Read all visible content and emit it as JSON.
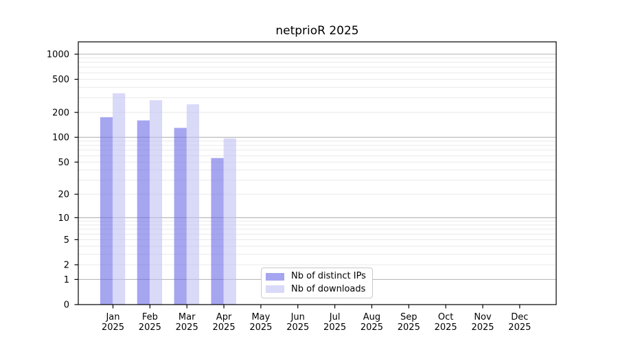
{
  "chart_data": {
    "type": "bar",
    "title": "netprioR 2025",
    "year": "2025",
    "categories": [
      "Jan",
      "Feb",
      "Mar",
      "Apr",
      "May",
      "Jun",
      "Jul",
      "Aug",
      "Sep",
      "Oct",
      "Nov",
      "Dec"
    ],
    "series": [
      {
        "name": "Nb of distinct IPs",
        "color": "#a5a5f0",
        "values": [
          175,
          160,
          130,
          56,
          null,
          null,
          null,
          null,
          null,
          null,
          null,
          null
        ]
      },
      {
        "name": "Nb of downloads",
        "color": "#d9d9f8",
        "values": [
          340,
          280,
          250,
          97,
          null,
          null,
          null,
          null,
          null,
          null,
          null,
          null
        ]
      }
    ],
    "yscale": "log10(value+1)",
    "yticks": [
      0,
      1,
      2,
      5,
      10,
      20,
      50,
      100,
      200,
      500,
      1000
    ],
    "major_gridlines": [
      1,
      10,
      100,
      1000
    ],
    "minor_gridlines": [
      2,
      3,
      4,
      5,
      6,
      7,
      8,
      9,
      20,
      30,
      40,
      50,
      60,
      70,
      80,
      90,
      200,
      300,
      400,
      500,
      600,
      700,
      800,
      900
    ],
    "ylim": [
      0,
      1400
    ],
    "grid": "on",
    "legend_position": "inside-bottom-center",
    "colors": {
      "major_grid": "#b0b0b0",
      "minor_grid": "#e9e9e9",
      "axis": "#000000",
      "text": "#000000"
    }
  }
}
